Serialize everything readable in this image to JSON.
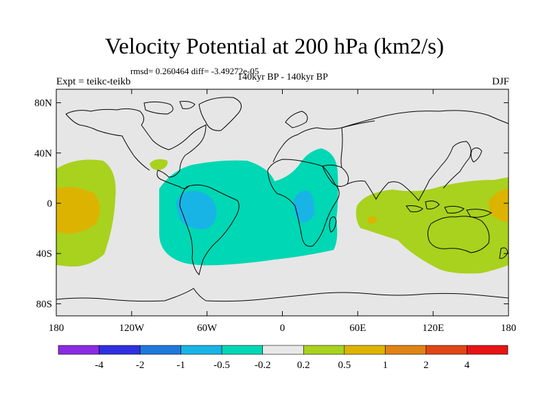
{
  "title": "Velocity Potential at 200 hPa (km2/s)",
  "stats_text": "rmsd= 0.260464 diff= -3.49272e-05",
  "left_label": "Expt = teikc-teikb",
  "center_label": "140kyr BP - 140kyr BP",
  "right_label": "DJF",
  "lat_ticks": [
    {
      "label": "80N",
      "lat": 80
    },
    {
      "label": "40N",
      "lat": 40
    },
    {
      "label": "0",
      "lat": 0
    },
    {
      "label": "40S",
      "lat": -40
    },
    {
      "label": "80S",
      "lat": -80
    }
  ],
  "lon_ticks": [
    {
      "label": "180",
      "lon": -180
    },
    {
      "label": "120W",
      "lon": -120
    },
    {
      "label": "60W",
      "lon": -60
    },
    {
      "label": "0",
      "lon": 0
    },
    {
      "label": "60E",
      "lon": 60
    },
    {
      "label": "120E",
      "lon": 120
    },
    {
      "label": "180",
      "lon": 180
    }
  ],
  "colorbar": {
    "colors": [
      "#8a2be2",
      "#3030e0",
      "#1e78dc",
      "#19b4e6",
      "#00d7b4",
      "#e8e8e8",
      "#a8d21e",
      "#dcb400",
      "#e08214",
      "#e04614",
      "#e61414"
    ],
    "labels": [
      "-4",
      "-2",
      "-1",
      "-0.5",
      "-0.2",
      "0.2",
      "0.5",
      "1",
      "2",
      "4"
    ]
  },
  "map_colors": {
    "background": "#e6e6e6",
    "neg_light": "#00d7b4",
    "neg_med": "#19b4e6",
    "pos_light": "#a8d21e",
    "pos_med": "#dcb400",
    "pos_strong": "#e08214"
  }
}
